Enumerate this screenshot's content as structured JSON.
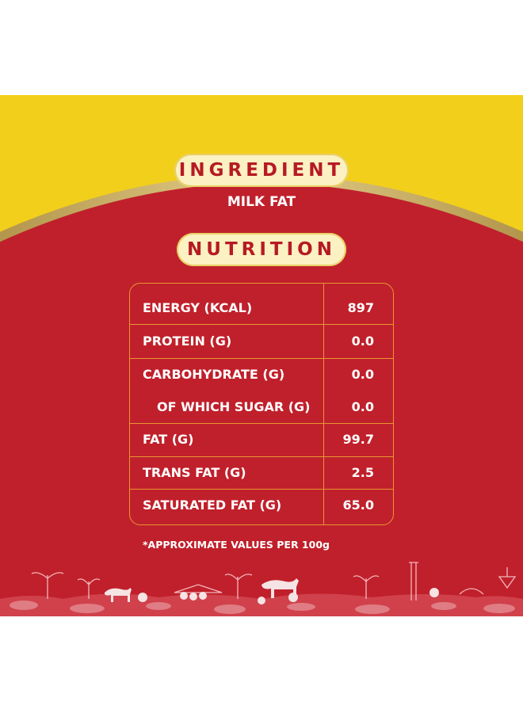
{
  "colors": {
    "yellow": "#f2cf1b",
    "red": "#c0202b",
    "pill_bg": "#fbf1c2",
    "pill_text": "#b61a24",
    "table_border": "#e89632",
    "gold_trim": "#c8a54e"
  },
  "ingredient": {
    "heading": "INGREDIENT",
    "value": "MILK FAT"
  },
  "nutrition": {
    "heading": "NUTRITION",
    "rows": [
      {
        "label": "ENERGY (KCAL)",
        "value": "897"
      },
      {
        "label": "PROTEIN (G)",
        "value": "0.0"
      },
      {
        "label": "CARBOHYDRATE (G)",
        "value": "0.0"
      },
      {
        "label": "OF WHICH SUGAR (G)",
        "value": "0.0"
      },
      {
        "label": "FAT (G)",
        "value": "99.7"
      },
      {
        "label": "TRANS FAT (G)",
        "value": "2.5"
      },
      {
        "label": "SATURATED FAT (G)",
        "value": "65.0"
      }
    ],
    "footnote": "*APPROXIMATE VALUES PER 100g"
  }
}
